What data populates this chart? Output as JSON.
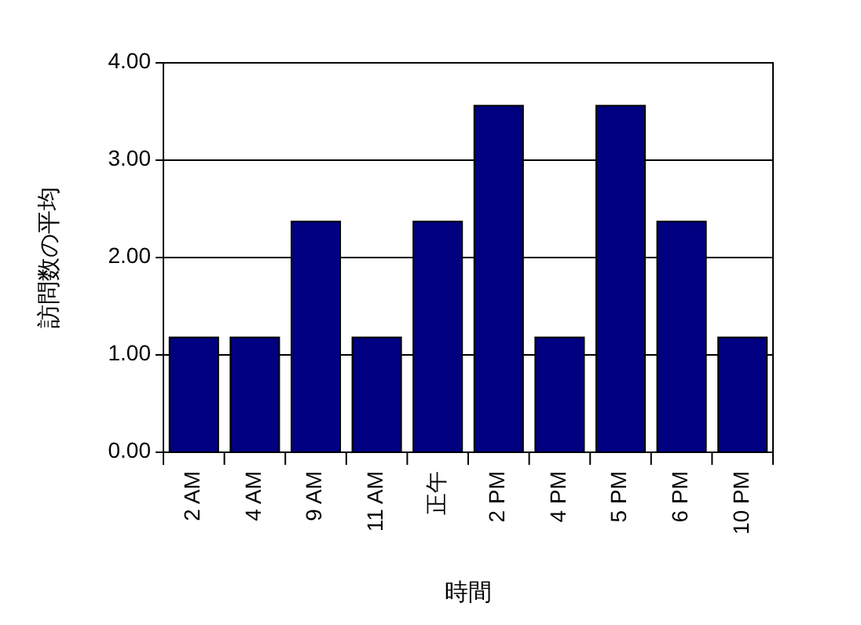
{
  "chart_data": {
    "type": "bar",
    "xlabel": "時間",
    "ylabel": "訪問数の平均",
    "categories": [
      "2 AM",
      "4 AM",
      "9 AM",
      "11 AM",
      "正午",
      "2 PM",
      "4 PM",
      "5 PM",
      "6 PM",
      "10 PM"
    ],
    "values": [
      1.18,
      1.18,
      2.37,
      1.18,
      2.37,
      3.56,
      1.18,
      3.56,
      2.37,
      1.18
    ],
    "color": "#000080",
    "ylim": [
      0,
      4
    ],
    "yticks": [
      {
        "value": 0,
        "label": "0.00"
      },
      {
        "value": 1,
        "label": "1.00"
      },
      {
        "value": 2,
        "label": "2.00"
      },
      {
        "value": 3,
        "label": "3.00"
      },
      {
        "value": 4,
        "label": "4.00"
      }
    ],
    "grid": "y"
  }
}
